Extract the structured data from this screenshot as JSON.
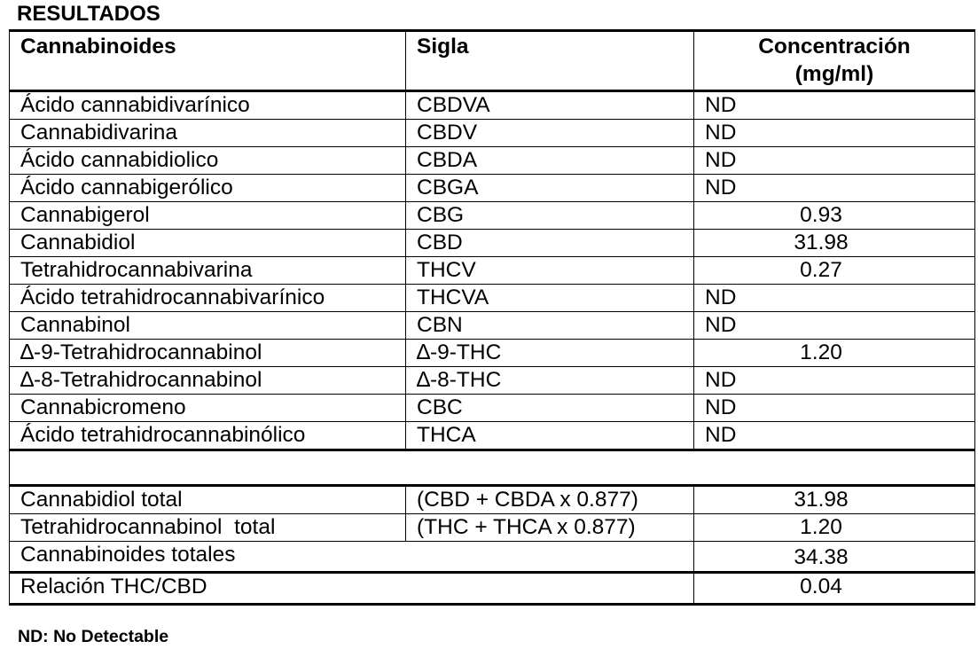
{
  "heading": "RESULTADOS",
  "columns": {
    "cannabinoid": "Cannabinoides",
    "abbreviation": "Sigla",
    "concentration_line1": "Concentración",
    "concentration_line2": "(mg/ml)"
  },
  "rows": [
    {
      "name": "Ácido cannabidivarínico",
      "abbr": "CBDVA",
      "value": "ND"
    },
    {
      "name": "Cannabidivarina",
      "abbr": "CBDV",
      "value": "ND"
    },
    {
      "name": "Ácido cannabidiolico",
      "abbr": "CBDA",
      "value": "ND"
    },
    {
      "name": "Ácido cannabigerólico",
      "abbr": "CBGA",
      "value": "ND"
    },
    {
      "name": "Cannabigerol",
      "abbr": "CBG",
      "value": "0.93"
    },
    {
      "name": "Cannabidiol",
      "abbr": "CBD",
      "value": "31.98"
    },
    {
      "name": "Tetrahidrocannabivarina",
      "abbr": "THCV",
      "value": "0.27"
    },
    {
      "name": "Ácido tetrahidrocannabivarínico",
      "abbr": "THCVA",
      "value": "ND"
    },
    {
      "name": "Cannabinol",
      "abbr": "CBN",
      "value": "ND"
    },
    {
      "name": "∆-9-Tetrahidrocannabinol",
      "abbr": "∆-9-THC",
      "value": "1.20"
    },
    {
      "name": "∆-8-Tetrahidrocannabinol",
      "abbr": "∆-8-THC",
      "value": "ND"
    },
    {
      "name": "Cannabicromeno",
      "abbr": "CBC",
      "value": "ND"
    },
    {
      "name": "Ácido tetrahidrocannabinólico",
      "abbr": "THCA",
      "value": "ND"
    }
  ],
  "totals": {
    "cbd_total": {
      "label": "Cannabidiol total",
      "formula": "(CBD + CBDA x 0.877)",
      "value": "31.98"
    },
    "thc_total": {
      "label": "Tetrahidrocannabinol  total",
      "formula": "(THC + THCA x 0.877)",
      "value": "1.20"
    },
    "cannabinoids_total": {
      "label": "Cannabinoides totales",
      "value": "34.38"
    },
    "ratio": {
      "label": "Relación THC/CBD",
      "value": "0.04"
    }
  },
  "footnote": "ND: No Detectable"
}
